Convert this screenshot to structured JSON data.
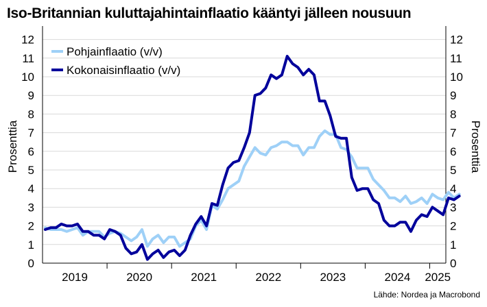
{
  "chart_data": {
    "type": "line",
    "title": "Iso-Britannian kuluttajahintainflaatio kääntyi jälleen nousuun",
    "ylabel_left": "Prosenttia",
    "ylabel_right": "Prosenttia",
    "source": "Lähde: Nordea ja Macrobond",
    "ylim": [
      0,
      12.5
    ],
    "yticks": [
      0,
      1,
      2,
      3,
      4,
      5,
      6,
      7,
      8,
      9,
      10,
      11,
      12
    ],
    "x_start": "2019-01",
    "x_end": "2025-03",
    "xticks": [
      "2019",
      "2020",
      "2021",
      "2022",
      "2023",
      "2024",
      "2025"
    ],
    "grid": true,
    "legend_position": "top-left",
    "series": [
      {
        "name": "Pohjainflaatio (v/v)",
        "color": "#9ed0f7",
        "x_start": "2019-01",
        "values": [
          1.9,
          1.8,
          1.8,
          1.8,
          1.7,
          1.8,
          1.9,
          1.5,
          1.7,
          1.7,
          1.7,
          1.4,
          1.6,
          1.7,
          1.6,
          1.4,
          1.2,
          1.4,
          1.8,
          0.9,
          1.3,
          1.5,
          1.1,
          1.4,
          1.4,
          0.9,
          1.1,
          1.3,
          2.0,
          2.3,
          1.8,
          3.1,
          2.9,
          3.4,
          4.0,
          4.2,
          4.4,
          5.2,
          5.7,
          6.2,
          5.9,
          5.8,
          6.2,
          6.3,
          6.5,
          6.5,
          6.3,
          6.3,
          5.8,
          6.2,
          6.2,
          6.8,
          7.1,
          6.9,
          6.9,
          6.2,
          6.1,
          5.7,
          5.1,
          5.1,
          5.1,
          4.5,
          4.2,
          3.9,
          3.5,
          3.5,
          3.3,
          3.6,
          3.2,
          3.3,
          3.5,
          3.2,
          3.7,
          3.5,
          3.4,
          3.8,
          3.5,
          3.7
        ]
      },
      {
        "name": "Kokonaisinflaatio (v/v)",
        "color": "#00009b",
        "x_start": "2019-01",
        "values": [
          1.8,
          1.9,
          1.9,
          2.1,
          2.0,
          2.0,
          2.1,
          1.7,
          1.7,
          1.5,
          1.5,
          1.3,
          1.8,
          1.7,
          1.5,
          0.8,
          0.5,
          0.6,
          1.0,
          0.2,
          0.5,
          0.7,
          0.3,
          0.6,
          0.7,
          0.4,
          0.7,
          1.5,
          2.1,
          2.5,
          2.0,
          3.2,
          3.1,
          4.2,
          5.1,
          5.4,
          5.5,
          6.2,
          7.0,
          9.0,
          9.1,
          9.4,
          10.1,
          9.9,
          10.1,
          11.1,
          10.7,
          10.5,
          10.1,
          10.4,
          10.1,
          8.7,
          8.7,
          7.9,
          6.8,
          6.7,
          6.7,
          4.6,
          3.9,
          4.0,
          4.0,
          3.4,
          3.2,
          2.3,
          2.0,
          2.0,
          2.2,
          2.2,
          1.7,
          2.3,
          2.6,
          2.5,
          3.0,
          2.8,
          2.6,
          3.5,
          3.4,
          3.6
        ]
      }
    ]
  }
}
